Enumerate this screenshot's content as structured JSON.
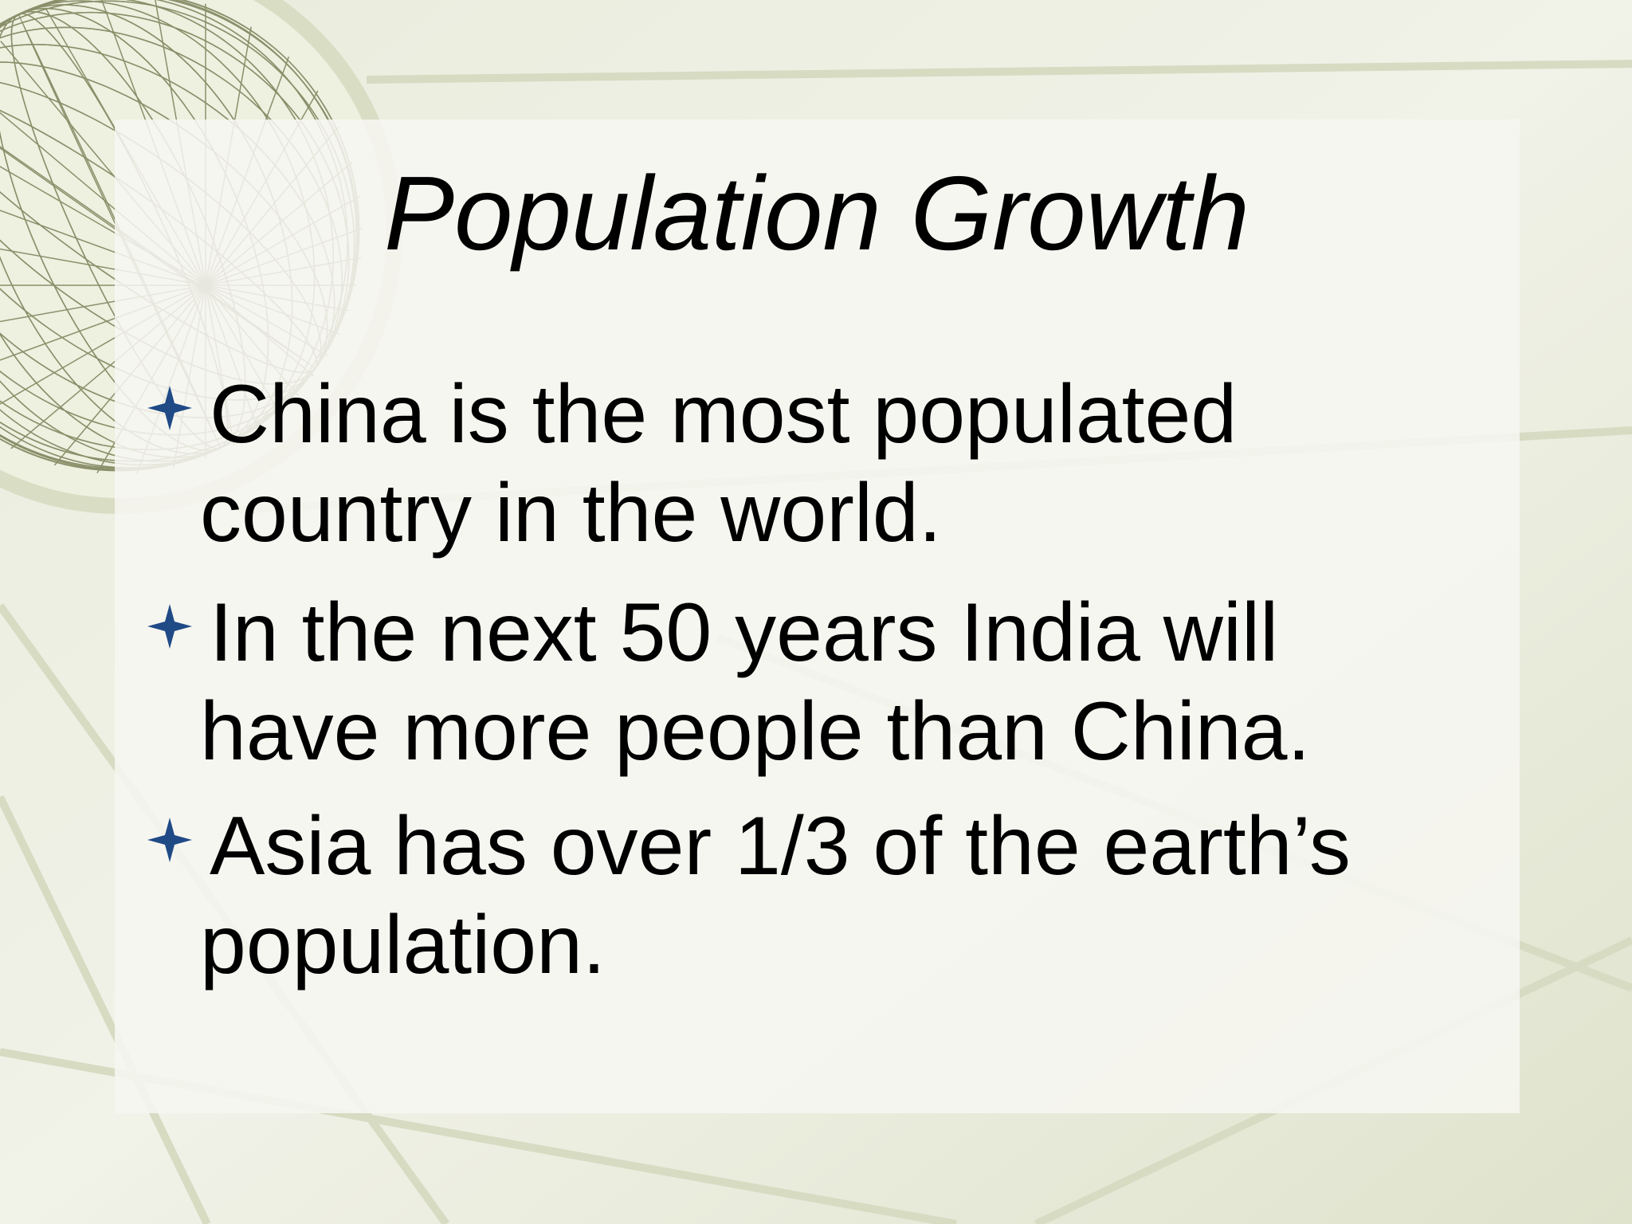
{
  "slide": {
    "title": "Population Growth",
    "bullets": [
      {
        "lines": [
          "China is the most populated",
          "country in the world."
        ]
      },
      {
        "lines": [
          "In the next 50 years India will",
          "have more people than China."
        ]
      },
      {
        "lines": [
          "Asia has over 1/3 of the earth’s",
          "population."
        ]
      }
    ]
  }
}
